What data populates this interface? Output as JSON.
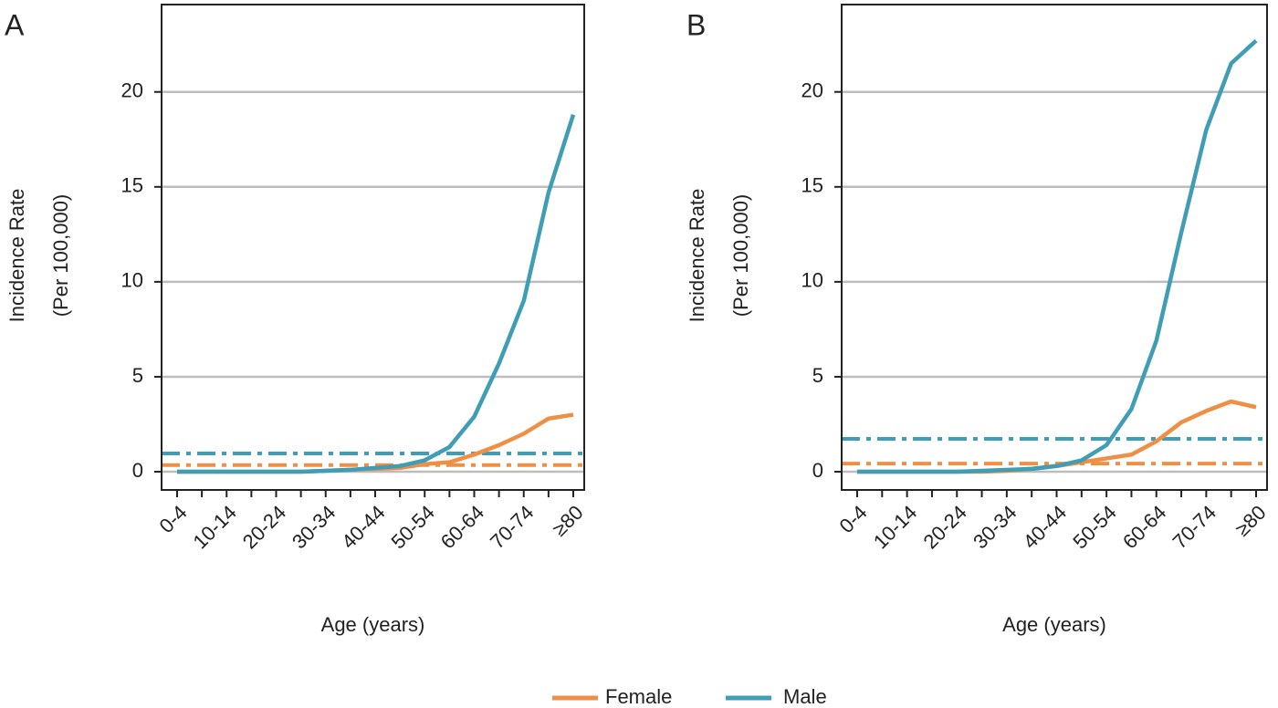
{
  "chart_data": [
    {
      "type": "line",
      "title": "A",
      "ylabel": [
        "Incidence Rate",
        "(Per 100,000)"
      ],
      "xlabel": "Age (years)",
      "categories": [
        "0-4",
        null,
        "10-14",
        null,
        "20-24",
        null,
        "30-34",
        null,
        "40-44",
        null,
        "50-54",
        null,
        "60-64",
        null,
        "70-74",
        null,
        "≥80"
      ],
      "series": [
        {
          "name": "Female",
          "color": "#ef8f45",
          "values": [
            0,
            0,
            0,
            0,
            0,
            0,
            0.05,
            0.1,
            0.15,
            0.2,
            0.4,
            0.5,
            0.9,
            1.4,
            2.0,
            2.8,
            3.0
          ],
          "reference": 0.35
        },
        {
          "name": "Male",
          "color": "#3f9db5",
          "values": [
            0,
            0,
            0,
            0,
            0,
            0,
            0.05,
            0.1,
            0.2,
            0.3,
            0.6,
            1.3,
            2.9,
            5.7,
            9.0,
            14.7,
            18.8
          ],
          "reference": 0.96
        }
      ],
      "ylim": [
        -0.96,
        24.6
      ],
      "yticks": [
        0,
        5,
        10,
        15,
        20
      ],
      "grid": true
    },
    {
      "type": "line",
      "title": "B",
      "ylabel": [
        "Incidence Rate",
        "(Per 100,000)"
      ],
      "xlabel": "Age (years)",
      "categories": [
        "0-4",
        null,
        "10-14",
        null,
        "20-24",
        null,
        "30-34",
        null,
        "40-44",
        null,
        "50-54",
        null,
        "60-64",
        null,
        "70-74",
        null,
        "≥80"
      ],
      "series": [
        {
          "name": "Female",
          "color": "#ef8f45",
          "values": [
            0,
            0,
            0,
            0,
            0,
            0,
            0.05,
            0.15,
            0.3,
            0.5,
            0.7,
            0.9,
            1.6,
            2.6,
            3.2,
            3.7,
            3.4
          ],
          "reference": 0.43
        },
        {
          "name": "Male",
          "color": "#3f9db5",
          "values": [
            0,
            0,
            0,
            0,
            0,
            0.05,
            0.1,
            0.15,
            0.3,
            0.6,
            1.4,
            3.3,
            6.9,
            12.6,
            18.0,
            21.5,
            22.7
          ],
          "reference": 1.73
        }
      ],
      "ylim": [
        -0.96,
        24.6
      ],
      "yticks": [
        0,
        5,
        10,
        15,
        20
      ],
      "grid": true
    }
  ]
}
